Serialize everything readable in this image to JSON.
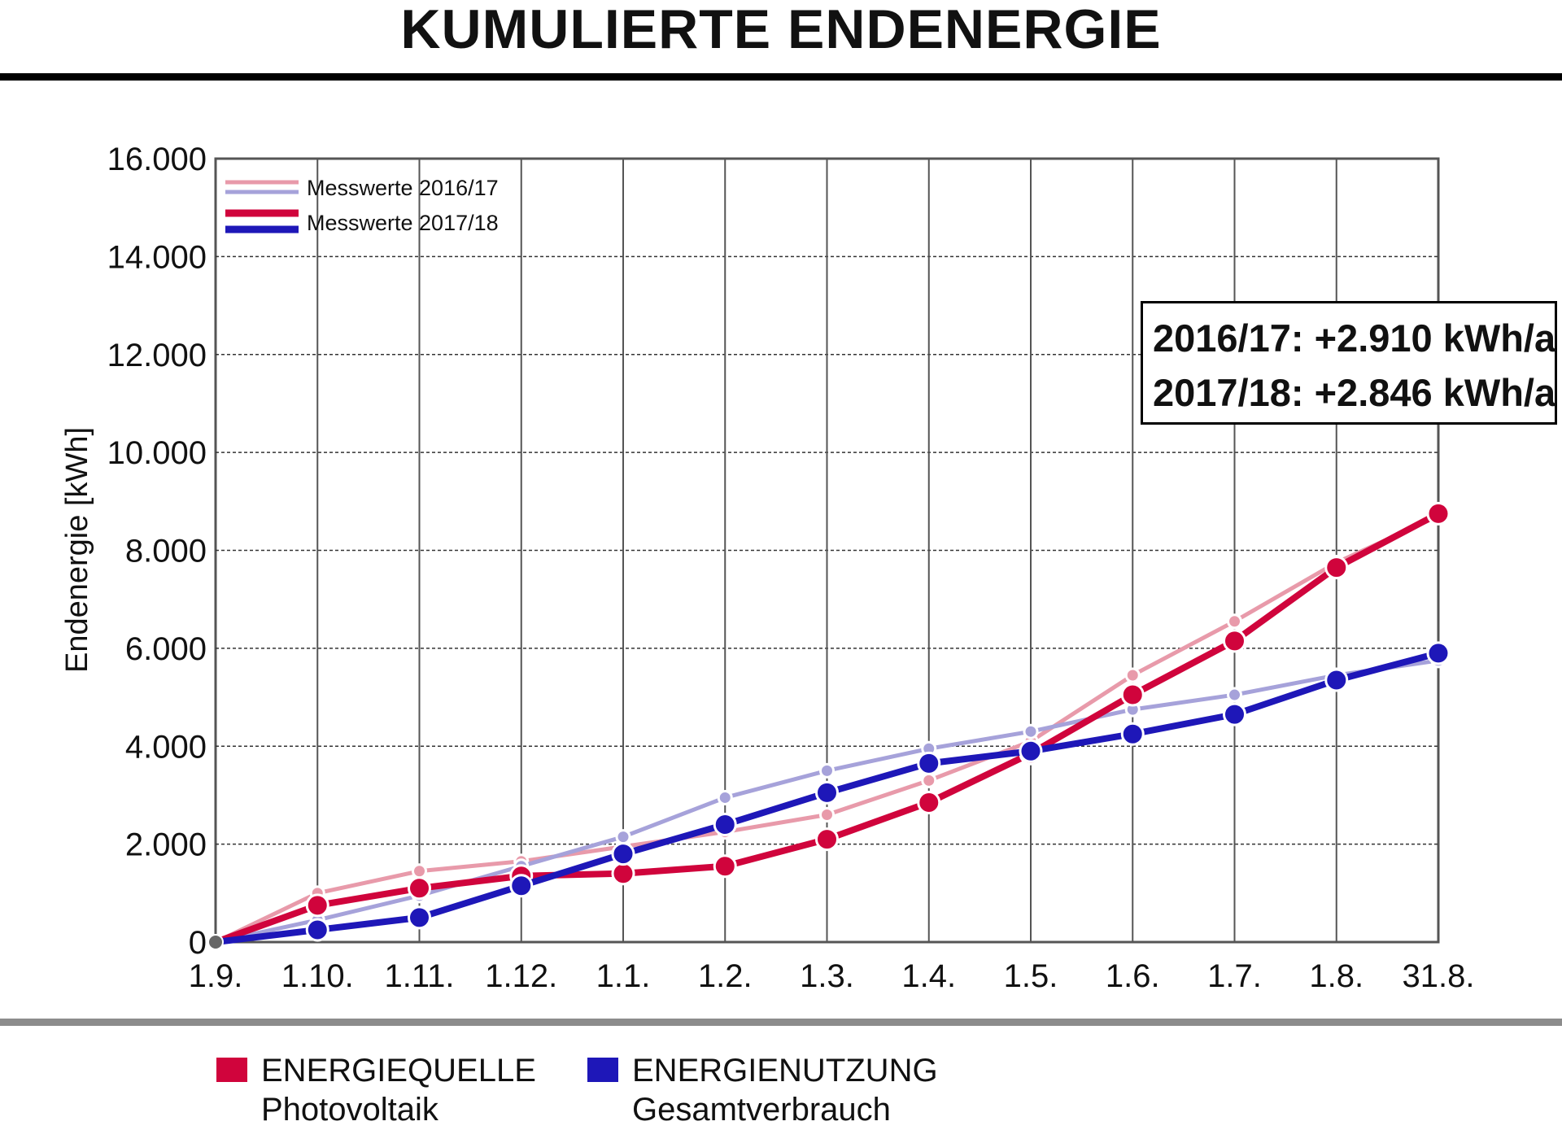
{
  "title": "KUMULIERTE ENDENERGIE",
  "info_box": {
    "line1": "2016/17: +2.910 kWh/a",
    "line2": "2017/18: +2.846 kWh/a"
  },
  "legend": {
    "source_title": "ENERGIEQUELLE",
    "source_subtitle": "Photovoltaik",
    "usage_title": "ENERGIENUTZUNG",
    "usage_subtitle": "Gesamtverbrauch"
  },
  "colors": {
    "source": "#d0043c",
    "source_light": "#e89aaa",
    "usage": "#1e17b8",
    "usage_light": "#a6a2da",
    "grid": "#555555"
  },
  "chart_data": {
    "type": "line",
    "title": "KUMULIERTE ENDENERGIE",
    "xlabel": "",
    "ylabel": "Endenergie [kWh]",
    "categories": [
      "1.9.",
      "1.10.",
      "1.11.",
      "1.12.",
      "1.1.",
      "1.2.",
      "1.3.",
      "1.4.",
      "1.5.",
      "1.6.",
      "1.7.",
      "1.8.",
      "31.8."
    ],
    "y_ticks": [
      "0",
      "2.000",
      "4.000",
      "6.000",
      "8.000",
      "10.000",
      "12.000",
      "14.000",
      "16.000"
    ],
    "ylim": [
      0,
      16000
    ],
    "grid": true,
    "chart_legend": [
      "Messwerte 2016/17",
      "Messwerte 2017/18"
    ],
    "legend_position": "top-left",
    "series": [
      {
        "name": "Messwerte 2016/17",
        "group": "ENERGIEQUELLE",
        "values": [
          0,
          1000,
          1450,
          1650,
          1950,
          2250,
          2600,
          3300,
          4100,
          5450,
          6550,
          7750,
          8700
        ]
      },
      {
        "name": "Messwerte 2016/17",
        "group": "ENERGIENUTZUNG",
        "values": [
          0,
          450,
          950,
          1550,
          2150,
          2950,
          3500,
          3950,
          4300,
          4750,
          5050,
          5450,
          5750
        ]
      },
      {
        "name": "Messwerte 2017/18",
        "group": "ENERGIEQUELLE",
        "values": [
          0,
          750,
          1100,
          1350,
          1400,
          1550,
          2100,
          2850,
          3850,
          5050,
          6150,
          7650,
          8750
        ]
      },
      {
        "name": "Messwerte 2017/18",
        "group": "ENERGIENUTZUNG",
        "values": [
          0,
          250,
          500,
          1150,
          1800,
          2400,
          3050,
          3650,
          3900,
          4250,
          4650,
          5350,
          5900
        ]
      }
    ]
  }
}
